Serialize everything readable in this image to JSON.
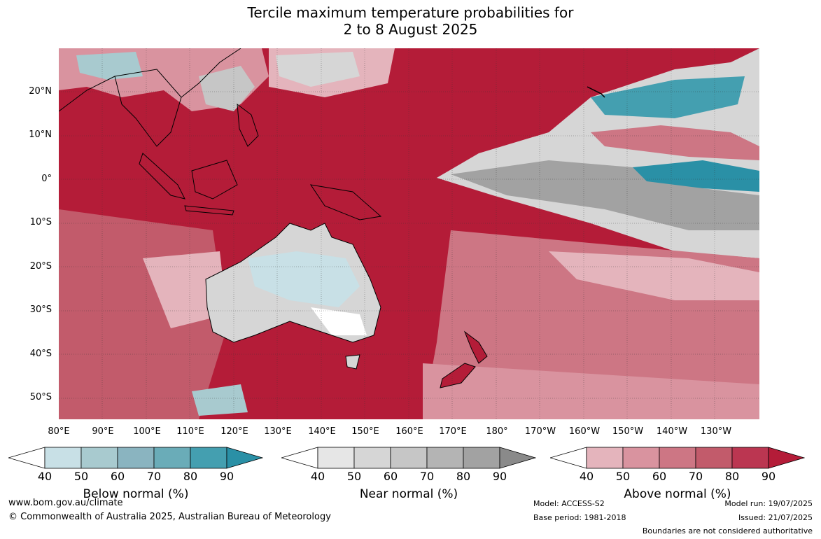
{
  "title": {
    "line1": "Tercile maximum temperature probabilities for",
    "line2": "2 to 8 August 2025"
  },
  "map": {
    "lat_labels": [
      "20°N",
      "10°N",
      "0°",
      "10°S",
      "20°S",
      "30°S",
      "40°S",
      "50°S"
    ],
    "lon_labels": [
      "80°E",
      "90°E",
      "100°E",
      "110°E",
      "120°E",
      "130°E",
      "140°E",
      "150°E",
      "160°E",
      "170°E",
      "180°",
      "170°W",
      "160°W",
      "150°W",
      "140°W",
      "130°W"
    ],
    "lat_range": [
      -55,
      30
    ],
    "lon_range": [
      80,
      240
    ]
  },
  "legend": {
    "ticks": [
      "40",
      "50",
      "60",
      "70",
      "80",
      "90"
    ],
    "below": {
      "title": "Below normal (%)",
      "colors": [
        "#ffffff",
        "#c8e0e6",
        "#a8cacf",
        "#8ab4c0",
        "#6aacb8",
        "#449fb0",
        "#2a90a6"
      ]
    },
    "near": {
      "title": "Near normal (%)",
      "colors": [
        "#ffffff",
        "#e6e6e6",
        "#d6d6d6",
        "#c6c6c6",
        "#b4b4b4",
        "#a2a2a2",
        "#8a8a8a"
      ]
    },
    "above": {
      "title": "Above normal (%)",
      "colors": [
        "#ffffff",
        "#e4b4bc",
        "#d9939f",
        "#cd7684",
        "#c25b6b",
        "#bb3651",
        "#b41c38"
      ]
    }
  },
  "footer": {
    "url": "www.bom.gov.au/climate",
    "copyright": "© Commonwealth of Australia 2025, Australian Bureau of Meteorology",
    "model": "Model: ACCESS-S2",
    "base_period": "Base period: 1981-2018",
    "model_run": "Model run: 19/07/2025",
    "issued": "Issued: 21/07/2025",
    "disclaimer": "Boundaries are not considered authoritative"
  }
}
